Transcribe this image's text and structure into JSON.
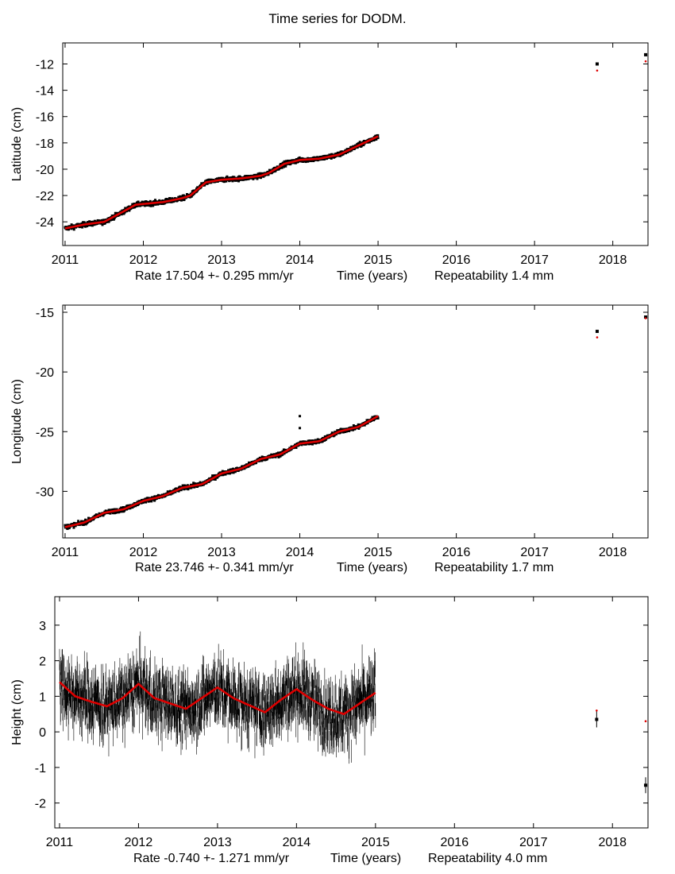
{
  "title": "Time series for DODM.",
  "colors": {
    "observed": "#000000",
    "model": "#dd0000",
    "frame": "#000000",
    "background": "#ffffff"
  },
  "chart_data": [
    {
      "type": "scatter",
      "name": "latitude",
      "ylabel": "Latitude (cm)",
      "xlabel": "Time (years)",
      "rate_text": "Rate 17.504 +- 0.295 mm/yr",
      "repeat_text": "Repeatability 1.4 mm",
      "xlim": [
        2010.97,
        2018.45
      ],
      "ylim": [
        -25.8,
        -10.4
      ],
      "xticks": [
        2011,
        2012,
        2013,
        2014,
        2015,
        2016,
        2017,
        2018
      ],
      "yticks": [
        -24,
        -22,
        -20,
        -18,
        -16,
        -14,
        -12
      ],
      "series": [
        {
          "name": "observed",
          "x": [
            2011.0,
            2011.25,
            2011.5,
            2011.75,
            2011.9,
            2012.25,
            2012.5,
            2012.6,
            2012.8,
            2013.0,
            2013.25,
            2013.5,
            2013.6,
            2013.8,
            2014.0,
            2014.25,
            2014.5,
            2014.75,
            2015.0,
            2017.8,
            2018.42
          ],
          "y": [
            -24.5,
            -24.2,
            -24.0,
            -23.2,
            -22.7,
            -22.5,
            -22.2,
            -22.0,
            -21.0,
            -20.8,
            -20.7,
            -20.5,
            -20.3,
            -19.6,
            -19.3,
            -19.2,
            -18.9,
            -18.2,
            -17.5,
            -12.0,
            -11.3
          ]
        },
        {
          "name": "model",
          "x": [
            2011.0,
            2011.25,
            2011.5,
            2011.75,
            2011.9,
            2012.25,
            2012.5,
            2012.6,
            2012.8,
            2013.0,
            2013.25,
            2013.5,
            2013.6,
            2013.8,
            2014.0,
            2014.25,
            2014.5,
            2014.75,
            2015.0,
            2017.8,
            2018.42
          ],
          "y": [
            -24.5,
            -24.2,
            -24.0,
            -23.2,
            -22.7,
            -22.5,
            -22.2,
            -22.0,
            -21.0,
            -20.8,
            -20.7,
            -20.5,
            -20.3,
            -19.6,
            -19.3,
            -19.2,
            -18.9,
            -18.2,
            -17.5,
            -12.5,
            -11.8
          ]
        }
      ]
    },
    {
      "type": "scatter",
      "name": "longitude",
      "ylabel": "Longitude (cm)",
      "xlabel": "Time (years)",
      "rate_text": "Rate 23.746 +- 0.341 mm/yr",
      "repeat_text": "Repeatability 1.7 mm",
      "xlim": [
        2010.97,
        2018.45
      ],
      "ylim": [
        -33.9,
        -14.4
      ],
      "xticks": [
        2011,
        2012,
        2013,
        2014,
        2015,
        2016,
        2017,
        2018
      ],
      "yticks": [
        -30,
        -25,
        -20,
        -15
      ],
      "series": [
        {
          "name": "observed",
          "x": [
            2011.0,
            2011.25,
            2011.5,
            2011.75,
            2012.0,
            2012.25,
            2012.5,
            2012.75,
            2013.0,
            2013.25,
            2013.5,
            2013.75,
            2014.0,
            2014.25,
            2014.5,
            2014.75,
            2015.0,
            2017.8,
            2018.42
          ],
          "y": [
            -33.0,
            -32.6,
            -31.8,
            -31.5,
            -30.8,
            -30.4,
            -29.7,
            -29.4,
            -28.5,
            -28.1,
            -27.3,
            -26.9,
            -26.0,
            -25.8,
            -25.0,
            -24.6,
            -23.7,
            -16.6,
            -15.4
          ]
        },
        {
          "name": "model",
          "x": [
            2011.0,
            2011.25,
            2011.5,
            2011.75,
            2012.0,
            2012.25,
            2012.5,
            2012.75,
            2013.0,
            2013.25,
            2013.5,
            2013.75,
            2014.0,
            2014.25,
            2014.5,
            2014.75,
            2015.0,
            2017.8,
            2018.42
          ],
          "y": [
            -33.0,
            -32.6,
            -31.8,
            -31.5,
            -30.8,
            -30.4,
            -29.7,
            -29.4,
            -28.5,
            -28.1,
            -27.3,
            -26.9,
            -26.0,
            -25.8,
            -25.0,
            -24.6,
            -23.7,
            -17.1,
            -15.5
          ]
        },
        {
          "name": "outliers",
          "x": [
            2014.0,
            2014.0
          ],
          "y": [
            -23.7,
            -24.7
          ]
        }
      ]
    },
    {
      "type": "scatter",
      "name": "height",
      "ylabel": "Height (cm)",
      "xlabel": "Time (years)",
      "rate_text": "Rate -0.740 +- 1.271 mm/yr",
      "repeat_text": "Repeatability 4.0 mm",
      "xlim": [
        2010.94,
        2018.45
      ],
      "ylim": [
        -2.7,
        3.8
      ],
      "xticks": [
        2011,
        2012,
        2013,
        2014,
        2015,
        2016,
        2017,
        2018
      ],
      "yticks": [
        -2,
        -1,
        0,
        1,
        2,
        3
      ],
      "series": [
        {
          "name": "observed",
          "x": [
            2011.0,
            2011.2,
            2011.4,
            2011.6,
            2011.8,
            2012.0,
            2012.2,
            2012.4,
            2012.6,
            2012.8,
            2013.0,
            2013.2,
            2013.4,
            2013.6,
            2013.8,
            2014.0,
            2014.2,
            2014.4,
            2014.6,
            2014.8,
            2015.0,
            2017.8,
            2018.42
          ],
          "y": [
            1.4,
            1.0,
            0.9,
            0.7,
            0.9,
            1.3,
            0.9,
            0.8,
            0.6,
            0.9,
            1.2,
            0.9,
            0.7,
            0.55,
            0.9,
            1.2,
            0.9,
            0.4,
            0.5,
            0.8,
            1.1,
            0.35,
            -1.5
          ]
        },
        {
          "name": "model",
          "x": [
            2011.0,
            2011.2,
            2011.4,
            2011.6,
            2011.8,
            2012.0,
            2012.2,
            2012.4,
            2012.6,
            2012.8,
            2013.0,
            2013.2,
            2013.4,
            2013.6,
            2013.8,
            2014.0,
            2014.2,
            2014.4,
            2014.6,
            2014.8,
            2015.0,
            2017.8,
            2018.42
          ],
          "y": [
            1.4,
            1.0,
            0.85,
            0.72,
            0.95,
            1.35,
            0.95,
            0.8,
            0.65,
            0.95,
            1.25,
            0.95,
            0.75,
            0.55,
            0.9,
            1.2,
            0.9,
            0.65,
            0.5,
            0.8,
            1.1,
            0.6,
            0.3
          ]
        }
      ]
    }
  ]
}
